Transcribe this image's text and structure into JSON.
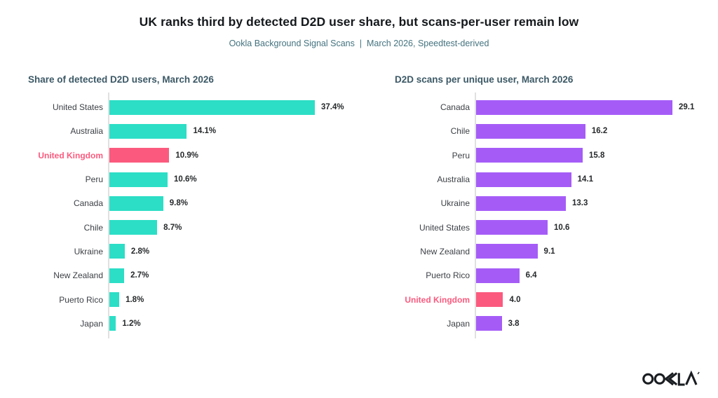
{
  "header": {
    "title": "UK ranks third by detected D2D user share, but scans-per-user remain low",
    "subtitle": "Ookla Background Signal Scans  |  March 2026, Speedtest-derived"
  },
  "colors": {
    "teal": "#2cdec6",
    "purple": "#a55cf7",
    "highlight_pink": "#fb5a7e",
    "title_text": "#15191c",
    "subtitle_text": "#44737f",
    "chart_title_text": "#3c5966",
    "axis_line": "#e1e1e1"
  },
  "chart_data": [
    {
      "type": "bar",
      "orientation": "horizontal",
      "title": "Share of detected D2D users, March 2026",
      "categories": [
        "United States",
        "Australia",
        "United Kingdom",
        "Peru",
        "Canada",
        "Chile",
        "Ukraine",
        "New Zealand",
        "Puerto Rico",
        "Japan"
      ],
      "values": [
        37.4,
        14.1,
        10.9,
        10.6,
        9.8,
        8.7,
        2.8,
        2.7,
        1.8,
        1.2
      ],
      "value_labels": [
        "37.4%",
        "14.1%",
        "10.9%",
        "10.6%",
        "9.8%",
        "8.7%",
        "2.8%",
        "2.7%",
        "1.8%",
        "1.2%"
      ],
      "bar_color": "#2cdec6",
      "highlight": "United Kingdom",
      "highlight_color": "#fb5a7e",
      "xlabel": "",
      "ylabel": "",
      "xlim": [
        0,
        40
      ],
      "grid": false,
      "legend": false
    },
    {
      "type": "bar",
      "orientation": "horizontal",
      "title": "D2D scans per unique user, March 2026",
      "categories": [
        "Canada",
        "Chile",
        "Peru",
        "Australia",
        "Ukraine",
        "United States",
        "New Zealand",
        "Puerto Rico",
        "United Kingdom",
        "Japan"
      ],
      "values": [
        29.1,
        16.2,
        15.8,
        14.1,
        13.3,
        10.6,
        9.1,
        6.4,
        4.0,
        3.8
      ],
      "value_labels": [
        "29.1",
        "16.2",
        "15.8",
        "14.1",
        "13.3",
        "10.6",
        "9.1",
        "6.4",
        "4.0",
        "3.8"
      ],
      "bar_color": "#a55cf7",
      "highlight": "United Kingdom",
      "highlight_color": "#fb5a7e",
      "xlabel": "",
      "ylabel": "",
      "xlim": [
        0,
        30
      ],
      "grid": false,
      "legend": false
    }
  ],
  "logo": {
    "label": "OOKLA"
  }
}
